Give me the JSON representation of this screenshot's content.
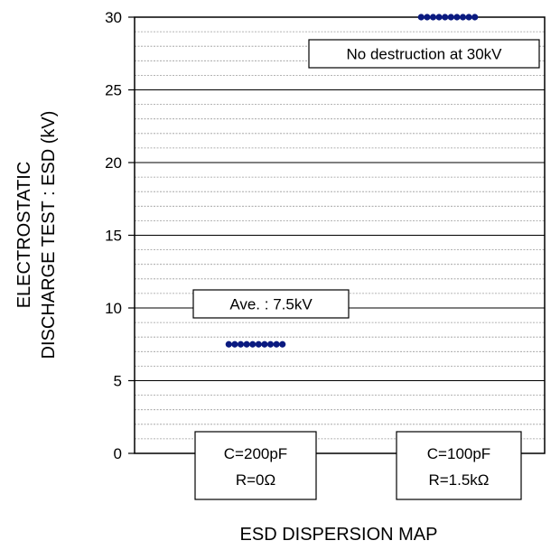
{
  "chart_data": {
    "type": "scatter",
    "xlabel": "ESD DISPERSION MAP",
    "ylabel_lines": [
      "ELECTROSTATIC",
      "DISCHARGE TEST : ESD (kV)"
    ],
    "ylim": [
      0,
      30
    ],
    "yticks": [
      "0",
      "5",
      "10",
      "15",
      "20",
      "25",
      "30"
    ],
    "major_grid_step": 5,
    "minor_grid_step": 1,
    "grid": true,
    "categories": [
      {
        "line1": "C=200pF",
        "line2": "R=0Ω"
      },
      {
        "line1": "C=100pF",
        "line2": "R=1.5kΩ"
      }
    ],
    "series": [
      {
        "category_index": 0,
        "value": 7.5,
        "count": 10
      },
      {
        "category_index": 1,
        "value": 30,
        "count": 10
      }
    ],
    "annotations": [
      {
        "text": "Ave. : 7.5kV",
        "category_index": 0
      },
      {
        "text": "No destruction at 30kV",
        "category_index": 1
      }
    ],
    "colors": {
      "marker": "#0a1a80",
      "grid_major": "#000000",
      "grid_minor": "#9a9a9a"
    }
  }
}
